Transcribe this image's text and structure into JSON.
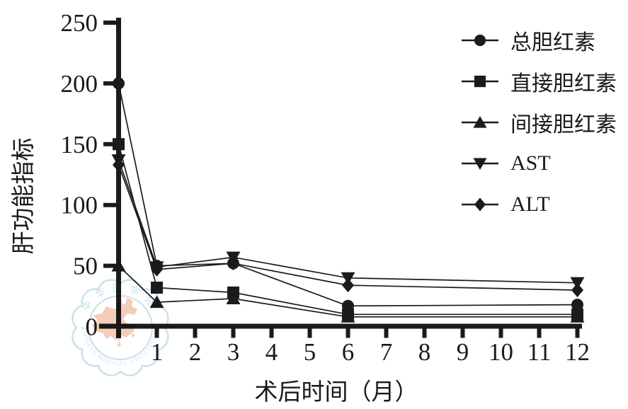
{
  "figure": {
    "background": "#ffffff",
    "ink_color": "#1b1b1b",
    "watermark": {
      "name": "chinese-medical-association-seal",
      "text_top": "中华医学会",
      "text_bottom": "CHINESE MEDICAL ASSOCIATION",
      "ring_color": "#a9cede",
      "map_color": "#edaa8c"
    }
  },
  "chart_data": {
    "type": "line",
    "title": "",
    "xlabel": "术后时间（月）",
    "ylabel": "肝功能指标",
    "x": [
      0,
      1,
      3,
      6,
      12
    ],
    "x_ticks": [
      1,
      2,
      3,
      4,
      5,
      6,
      7,
      8,
      9,
      10,
      11,
      12
    ],
    "y_ticks": [
      0,
      50,
      100,
      150,
      200,
      250
    ],
    "xlim": [
      0,
      12
    ],
    "ylim": [
      0,
      250
    ],
    "grid": false,
    "legend_position": "upper right",
    "series": [
      {
        "id": "total-bilirubin",
        "name": "总胆红素",
        "marker": "circle",
        "values": [
          200,
          50,
          52,
          17,
          18
        ]
      },
      {
        "id": "direct-bilirubin",
        "name": "直接胆红素",
        "marker": "square",
        "values": [
          150,
          32,
          28,
          10,
          10
        ]
      },
      {
        "id": "indirect-bilirubin",
        "name": "间接胆红素",
        "marker": "triangle-up",
        "values": [
          50,
          20,
          23,
          8,
          8
        ]
      },
      {
        "id": "ast",
        "name": "AST",
        "marker": "triangle-down",
        "values": [
          137,
          49,
          57,
          40,
          36
        ]
      },
      {
        "id": "alt",
        "name": "ALT",
        "marker": "diamond",
        "values": [
          133,
          47,
          52,
          34,
          30
        ]
      }
    ]
  }
}
